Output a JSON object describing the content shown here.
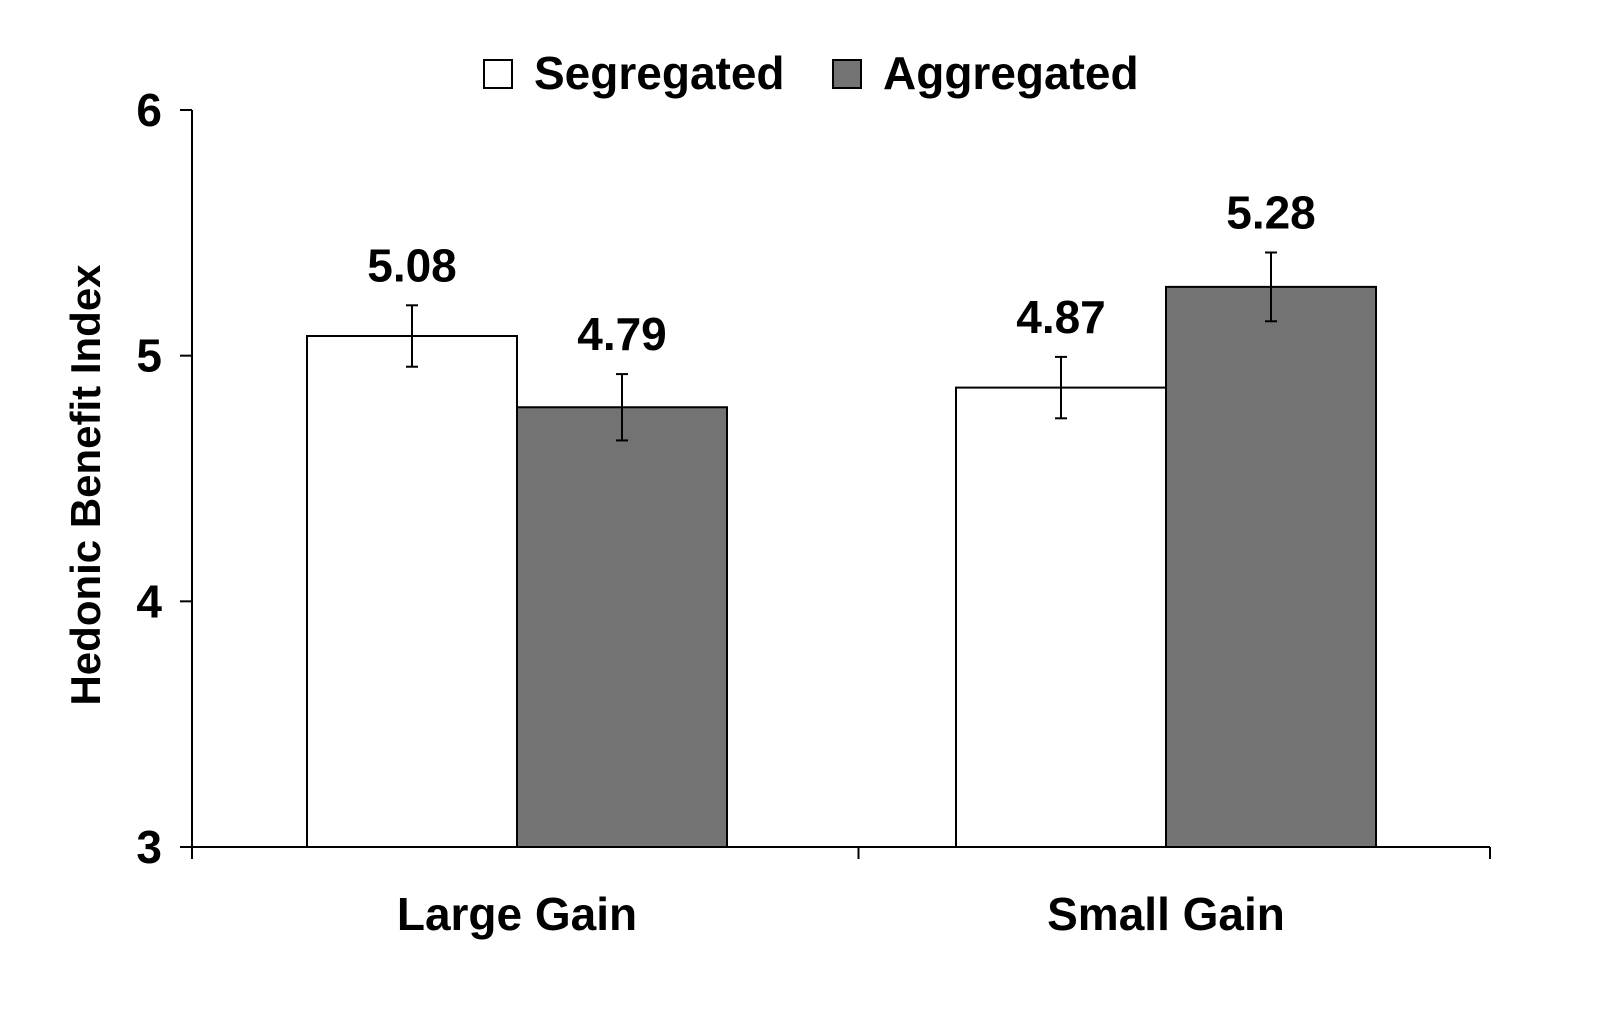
{
  "chart_data": {
    "type": "bar",
    "title": "",
    "xlabel": "",
    "ylabel": "Hedonic Benefit Index",
    "ylim": [
      3,
      6
    ],
    "yticks": [
      3,
      4,
      5,
      6
    ],
    "grid": false,
    "legend_placement": "top-center",
    "categories": [
      "Large Gain",
      "Small Gain"
    ],
    "series": [
      {
        "name": "Segregated",
        "color": "#ffffff",
        "values": [
          5.08,
          4.87
        ],
        "labels": [
          "5.08",
          "4.87"
        ],
        "error": [
          0.125,
          0.125
        ]
      },
      {
        "name": "Aggregated",
        "color": "#737373",
        "values": [
          4.79,
          5.28
        ],
        "labels": [
          "4.79",
          "5.28"
        ],
        "error": [
          0.135,
          0.14
        ]
      }
    ]
  }
}
